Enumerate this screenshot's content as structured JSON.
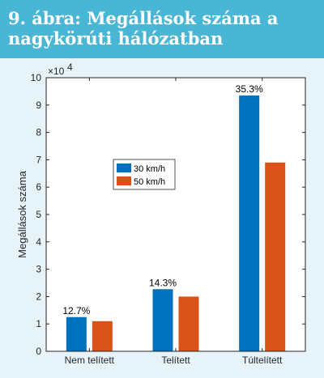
{
  "header": {
    "title": "9. ábra: Megállások száma a nagykörúti hálózatban",
    "background": "#4ab6d5"
  },
  "chart_data": {
    "type": "bar",
    "categories": [
      "Nem telített",
      "Telített",
      "Túltelített"
    ],
    "series": [
      {
        "name": "30 km/h",
        "color": "#0072bd",
        "values": [
          12500,
          22700,
          93500
        ]
      },
      {
        "name": "50 km/h",
        "color": "#d95319",
        "values": [
          11000,
          20000,
          69000
        ]
      }
    ],
    "data_labels": [
      "12.7%",
      "14.3%",
      "35.3%"
    ],
    "ylabel": "Megállások száma",
    "ylim": [
      0,
      100000
    ],
    "y_ticks": [
      0,
      1,
      2,
      3,
      4,
      5,
      6,
      7,
      8,
      9,
      10
    ],
    "y_multiplier_label": "×10",
    "y_multiplier_exponent": "4",
    "legend_position": "inside-left-middle",
    "grid": false
  }
}
